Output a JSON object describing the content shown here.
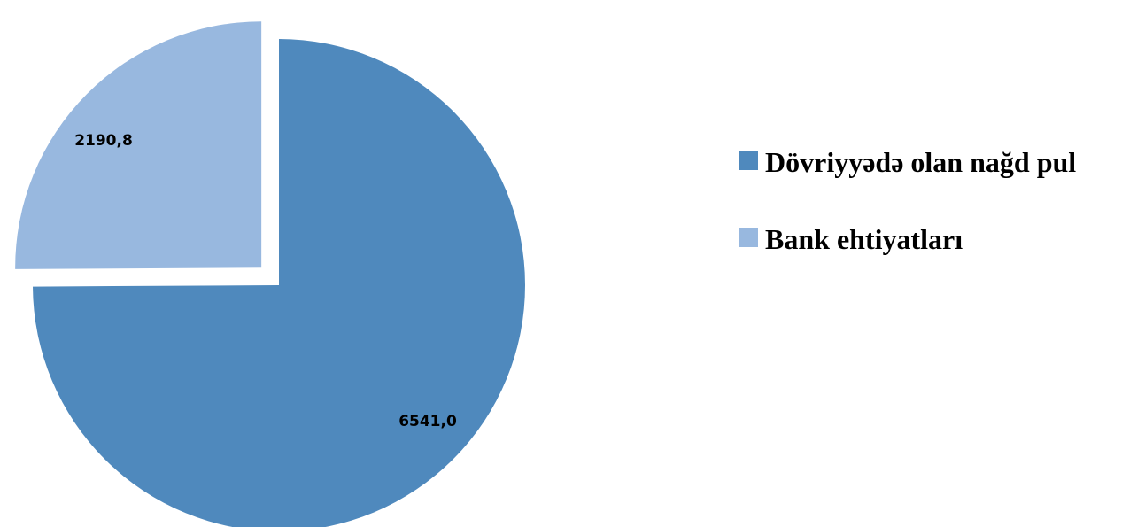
{
  "chart_data": {
    "type": "pie",
    "title": "",
    "slices": [
      {
        "name": "Dövriyyədə olan nağd pul",
        "value": 6541.0,
        "label": "6541,0",
        "color": "#4f89bd",
        "exploded": false
      },
      {
        "name": "Bank ehtiyatları",
        "value": 2190.8,
        "label": "2190,8",
        "color": "#98b8df",
        "exploded": true
      }
    ],
    "start": "12 o'clock",
    "direction": "clockwise",
    "legend_position": "right"
  }
}
